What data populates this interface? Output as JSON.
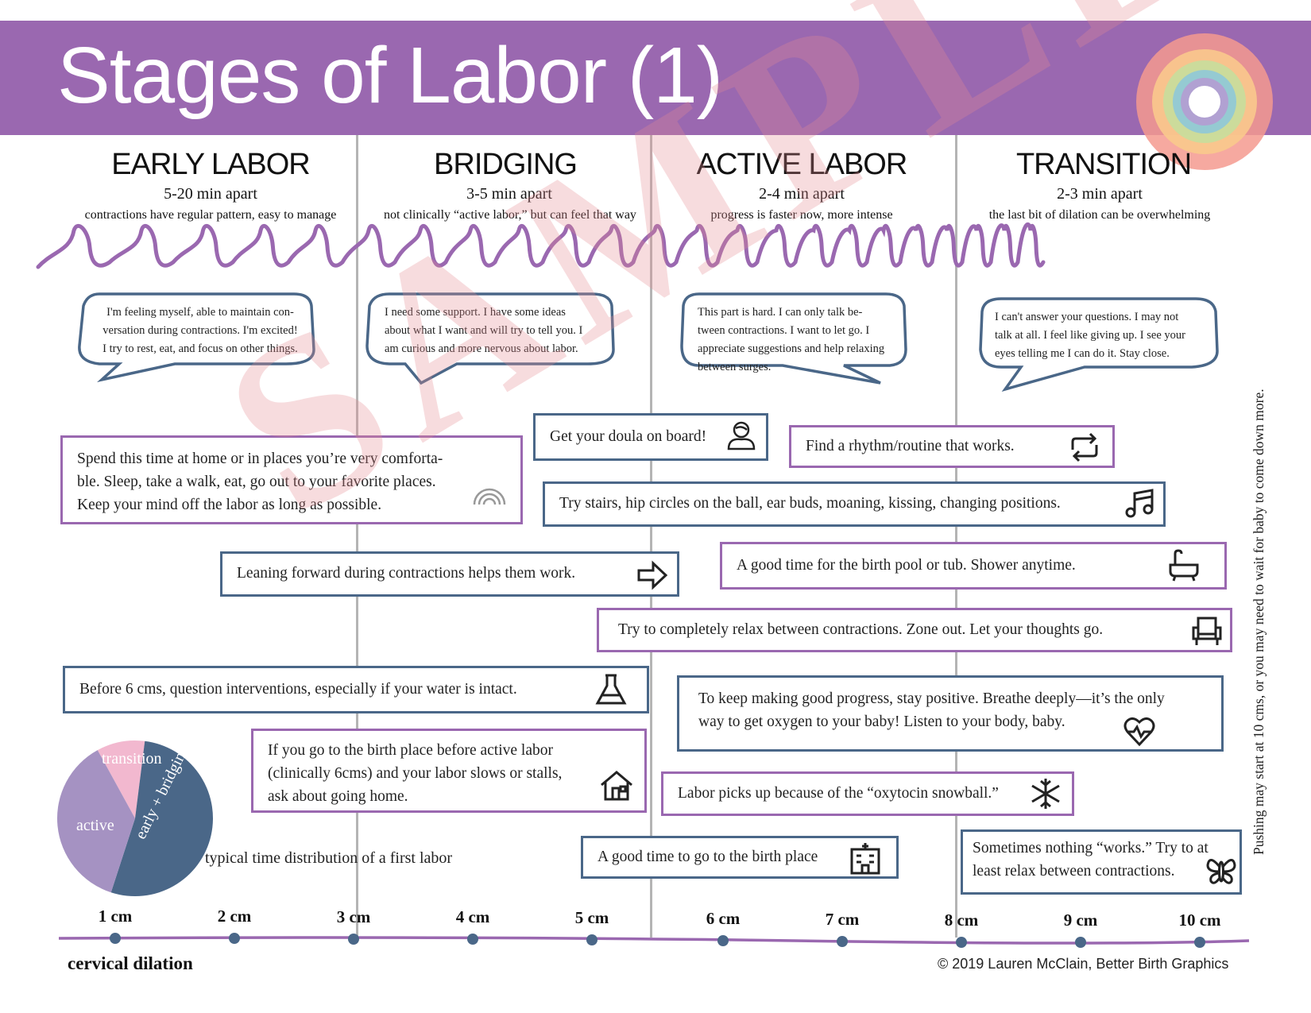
{
  "title": "Stages of Labor (1)",
  "stages": [
    {
      "name": "EARLY LABOR",
      "interval": "5-20 min apart",
      "desc": "contractions have regular pattern, easy to manage",
      "bubble": [
        "I'm feeling myself, able to maintain con-",
        "versation during contractions. I'm excited!",
        "I try to rest, eat, and focus on other things."
      ]
    },
    {
      "name": "BRIDGING",
      "interval": "3-5 min apart",
      "desc": "not clinically “active labor,” but can feel that way",
      "bubble": [
        "I need some support. I have some ideas",
        "about what I want and will try to tell you. I",
        "am curious and more nervous about labor."
      ]
    },
    {
      "name": "ACTIVE LABOR",
      "interval": "2-4 min apart",
      "desc": "progress is faster now, more intense",
      "bubble": [
        "This part is hard. I can only talk be-",
        "tween contractions. I want to let go. I",
        "appreciate suggestions and help relaxing",
        "between surges."
      ]
    },
    {
      "name": "TRANSITION",
      "interval": "2-3 min apart",
      "desc": "the last bit of dilation can be overwhelming",
      "bubble": [
        "I can't answer your questions. I may not",
        "talk at all. I feel like giving up. I see your",
        "eyes telling me I can do it. Stay close."
      ]
    }
  ],
  "tips": {
    "home": [
      "Spend this time at home or in places you’re very comforta-",
      "ble. Sleep, take a walk, eat, go out to your favorite places.",
      "Keep your mind off the labor as long as possible."
    ],
    "doula": "Get your doula on board!",
    "rhythm": "Find a rhythm/routine that works.",
    "stairs": "Try stairs, hip circles on the ball, ear buds, moaning, kissing, changing positions.",
    "leaning": "Leaning forward during contractions helps them work.",
    "pool": "A good time for the birth pool or tub.  Shower anytime.",
    "relax": "Try to completely relax between contractions. Zone out. Let your thoughts go.",
    "interventions": "Before 6 cms, question interventions, especially if your water is intact.",
    "positive": [
      "To keep making good progress, stay positive. Breathe deeply—it’s the only",
      "way to get oxygen to your baby! Listen to your body, baby."
    ],
    "birthplace_early": [
      "If you go to the birth place before active labor",
      "(clinically 6cms) and your labor slows or stalls,",
      "ask about going home."
    ],
    "oxytocin": "Labor picks up because of the “oxytocin snowball.”",
    "goodtime": "A good time to go to the birth place",
    "nothing": [
      "Sometimes nothing “works.” Try to at",
      "least relax between contractions."
    ]
  },
  "pie": {
    "caption": "typical time distribution of a first labor",
    "slices": [
      {
        "label": "early + bridging",
        "value": 0.53,
        "color": "#4a6788"
      },
      {
        "label": "active",
        "value": 0.37,
        "color": "#a592c2"
      },
      {
        "label": "transition",
        "value": 0.1,
        "color": "#f2b8cf"
      }
    ]
  },
  "side_note": "Pushing may start at 10 cms, or you may need to wait for baby to come down more.",
  "axis": {
    "label": "cervical dilation",
    "ticks": [
      "1 cm",
      "2 cm",
      "3 cm",
      "4 cm",
      "5 cm",
      "6 cm",
      "7 cm",
      "8 cm",
      "9 cm",
      "10 cm"
    ]
  },
  "watermark": "SAMPLE",
  "copyright": "© 2019 Lauren McClain, Better Birth Graphics",
  "colors": {
    "purple": "#9a68b0",
    "blue": "#4a6788",
    "gray": "#b4b4b4"
  },
  "icons": {
    "home": "rainbow-icon",
    "doula": "doula-person-icon",
    "rhythm": "repeat-arrows-icon",
    "stairs": "music-note-icon",
    "leaning": "arrow-right-icon",
    "pool": "bathtub-icon",
    "relax": "armchair-icon",
    "interventions": "flask-icon",
    "positive": "heartbeat-icon",
    "birthplace_early": "house-icon",
    "oxytocin": "snowflake-icon",
    "goodtime": "hospital-icon",
    "nothing": "butterfly-icon"
  }
}
